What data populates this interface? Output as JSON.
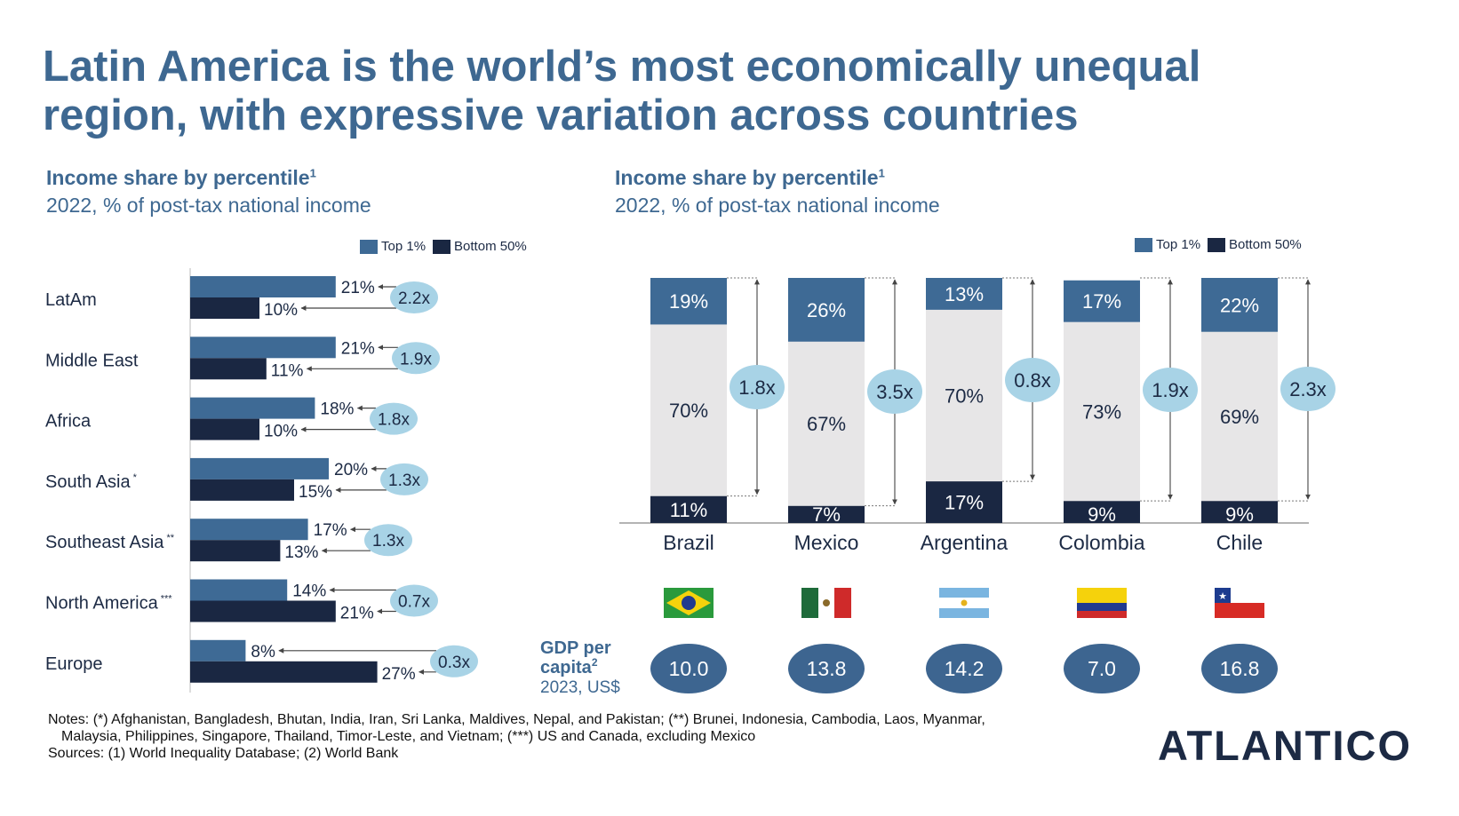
{
  "title": "Latin America is the world’s most economically unequal region, with expressive variation across countries",
  "left_panel": {
    "heading": "Income share by percentile",
    "heading_sup": "1",
    "caption": "2022, % of post-tax national income",
    "legend": [
      {
        "label": "Top 1%",
        "color": "#3e6a95"
      },
      {
        "label": "Bottom 50%",
        "color": "#1a2742"
      }
    ]
  },
  "right_panel": {
    "heading": "Income share by percentile",
    "heading_sup": "1",
    "caption": "2022, % of post-tax national income",
    "legend": [
      {
        "label": "Top 1%",
        "color": "#3e6a95"
      },
      {
        "label": "Bottom 50%",
        "color": "#1a2742"
      }
    ]
  },
  "colors": {
    "title": "#3e6891",
    "top1": "#3e6a95",
    "bottom50": "#1a2742",
    "middle": "#e7e6e7",
    "ratio_bubble": "#a8d3e6",
    "gdp_bubble": "#3d6590"
  },
  "chart_data": [
    {
      "type": "bar",
      "orientation": "horizontal",
      "categories": [
        "LatAm",
        "Middle East",
        "Africa",
        "South Asia",
        "Southeast Asia",
        "North America",
        "Europe"
      ],
      "category_marks": [
        "",
        "",
        "",
        "*",
        "**",
        "***",
        ""
      ],
      "series": [
        {
          "name": "Top 1%",
          "values": [
            21,
            21,
            18,
            20,
            17,
            14,
            8
          ]
        },
        {
          "name": "Bottom 50%",
          "values": [
            10,
            11,
            10,
            15,
            13,
            21,
            27
          ]
        }
      ],
      "ratios": [
        "2.2x",
        "1.9x",
        "1.8x",
        "1.3x",
        "1.3x",
        "0.7x",
        "0.3x"
      ],
      "value_suffix": "%",
      "legend_position": "top"
    },
    {
      "type": "bar",
      "stacked": true,
      "categories": [
        "Brazil",
        "Mexico",
        "Argentina",
        "Colombia",
        "Chile"
      ],
      "series": [
        {
          "name": "Bottom 50%",
          "values": [
            11,
            7,
            17,
            9,
            9
          ]
        },
        {
          "name": "",
          "values": [
            70,
            67,
            70,
            73,
            69
          ]
        },
        {
          "name": "Top 1%",
          "values": [
            19,
            26,
            13,
            17,
            22
          ]
        }
      ],
      "ratios": [
        "1.8x",
        "3.5x",
        "0.8x",
        "1.9x",
        "2.3x"
      ],
      "value_suffix": "%",
      "legend_position": "top-right"
    }
  ],
  "gdp": {
    "label_line1": "GDP per",
    "label_line2": "capita",
    "label_sup": "2",
    "label_line3": "2023, US$",
    "values": [
      "10.0",
      "13.8",
      "14.2",
      "7.0",
      "16.8"
    ]
  },
  "flags": [
    "brazil-flag-icon",
    "mexico-flag-icon",
    "argentina-flag-icon",
    "colombia-flag-icon",
    "chile-flag-icon"
  ],
  "notes": {
    "line1": "Notes: (*) Afghanistan, Bangladesh, Bhutan, India, Iran, Sri Lanka, Maldives, Nepal, and Pakistan; (**) Brunei, Indonesia, Cambodia, Laos, Myanmar,",
    "line2": "Malaysia, Philippines, Singapore, Thailand, Timor-Leste, and Vietnam; (***) US and Canada, excluding Mexico",
    "sources": "Sources: (1) World Inequality Database; (2) World Bank"
  },
  "logo": "ATLANTICO"
}
